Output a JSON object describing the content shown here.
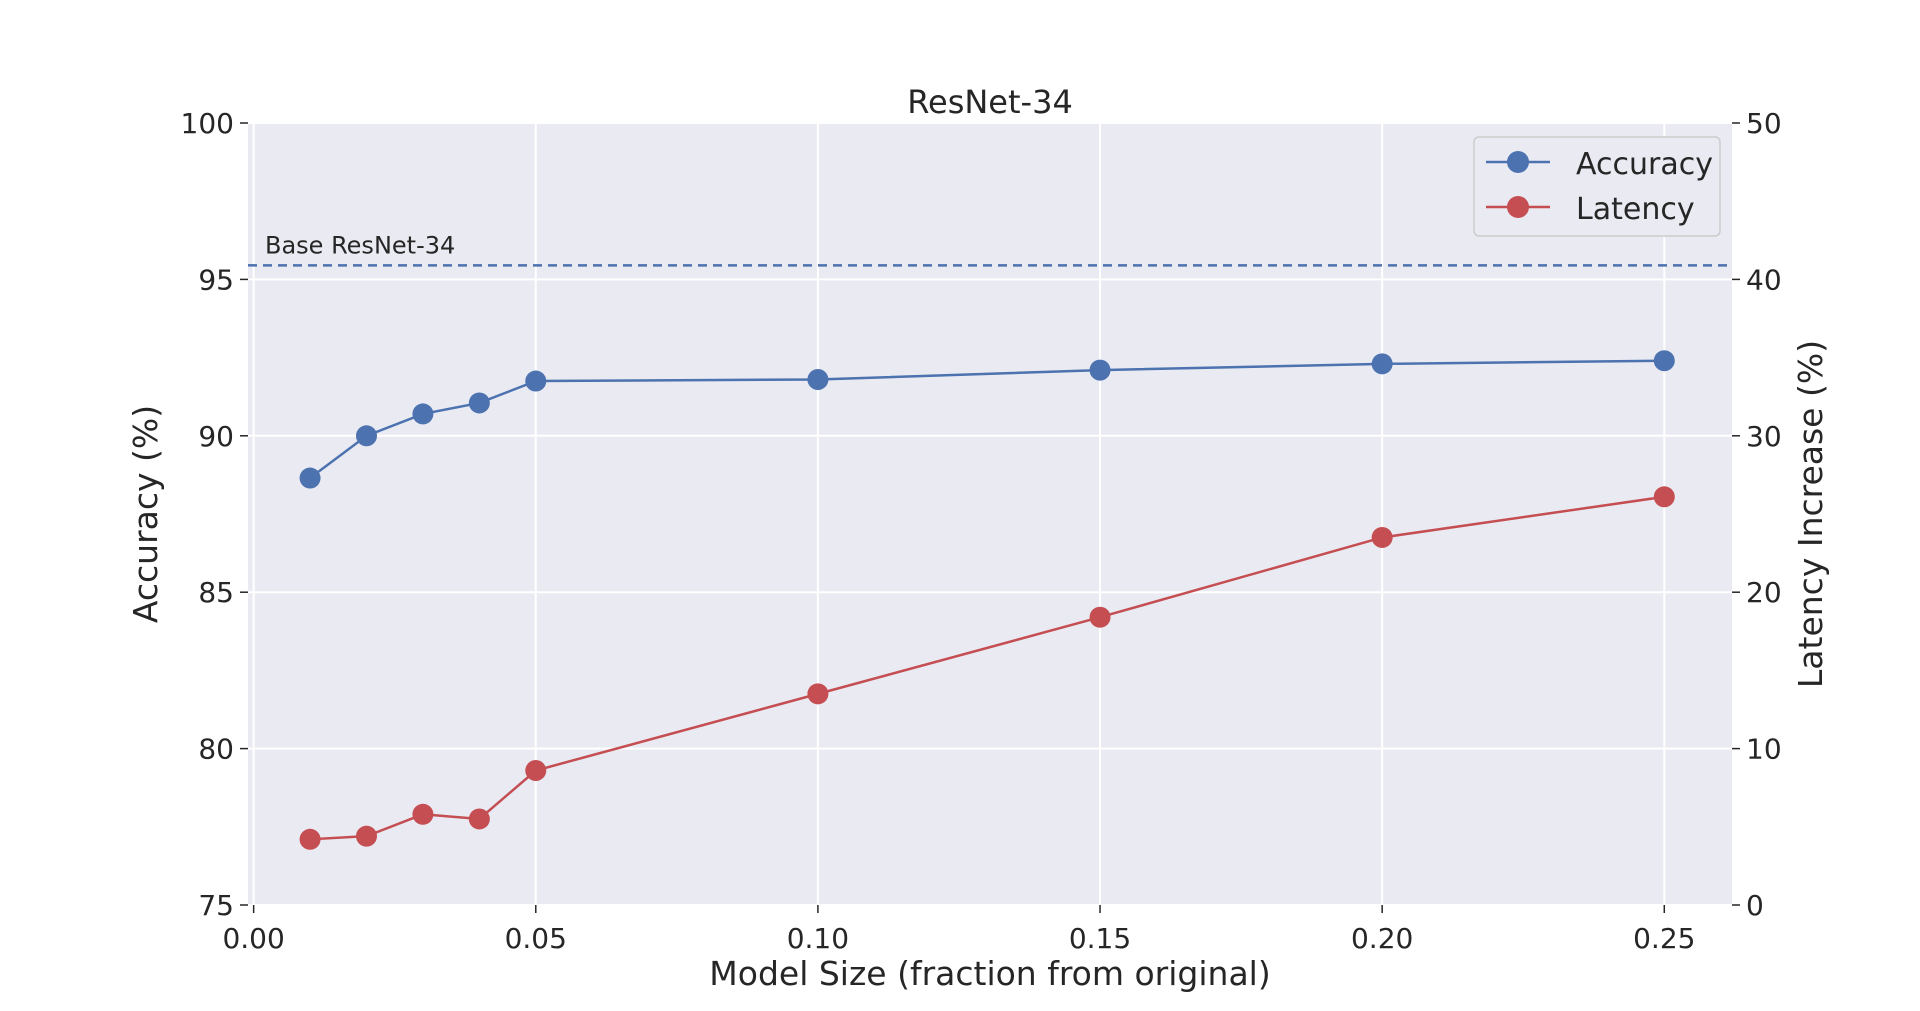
{
  "chart_data": {
    "type": "line",
    "title": "ResNet-34",
    "xlabel": "Model Size (fraction from original)",
    "ylabel_left": "Accuracy (%)",
    "ylabel_right": "Latency Increase (%)",
    "x": [
      0.01,
      0.02,
      0.03,
      0.04,
      0.05,
      0.1,
      0.15,
      0.2,
      0.25
    ],
    "xlim": [
      -0.001,
      0.262
    ],
    "ylim_left": [
      75,
      100
    ],
    "ylim_right": [
      0,
      50
    ],
    "xticks": [
      "0.00",
      "0.05",
      "0.10",
      "0.15",
      "0.20",
      "0.25"
    ],
    "yticks_left": [
      "75",
      "80",
      "85",
      "90",
      "95",
      "100"
    ],
    "yticks_right": [
      "0",
      "10",
      "20",
      "30",
      "40",
      "50"
    ],
    "grid": true,
    "legend_position": "top-right",
    "series": [
      {
        "name": "Accuracy",
        "axis": "left",
        "color": "#4c72b0",
        "values": [
          88.65,
          90.0,
          90.7,
          91.05,
          91.75,
          91.8,
          92.1,
          92.3,
          92.4
        ]
      },
      {
        "name": "Latency",
        "axis": "right",
        "color": "#c44e52",
        "values": [
          4.2,
          4.4,
          5.8,
          5.5,
          8.6,
          13.5,
          18.4,
          23.5,
          26.1
        ]
      }
    ],
    "reference_line": {
      "label": "Base ResNet-34",
      "y": 95.45,
      "axis": "left",
      "color": "#4c72b0",
      "style": "dashed"
    }
  }
}
